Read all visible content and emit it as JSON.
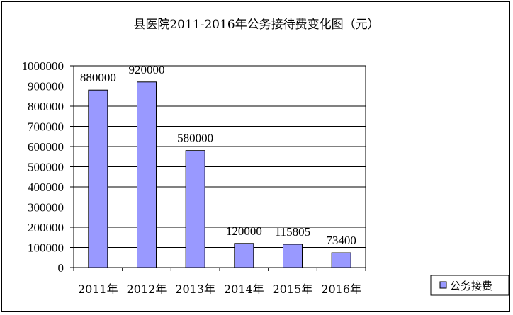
{
  "chart_data": {
    "type": "bar",
    "title": "县医院2011-2016年公务接待费变化图（元）",
    "categories": [
      "2011年",
      "2012年",
      "2013年",
      "2014年",
      "2015年",
      "2016年"
    ],
    "series": [
      {
        "name": "公务接费",
        "values": [
          880000,
          920000,
          580000,
          120000,
          115805,
          73400
        ]
      }
    ],
    "data_labels": [
      "880000",
      "920000",
      "580000",
      "120000",
      "115805",
      "73400"
    ],
    "y_ticks": [
      "0",
      "100000",
      "200000",
      "300000",
      "400000",
      "500000",
      "600000",
      "700000",
      "800000",
      "900000",
      "1000000"
    ],
    "ylim": [
      0,
      1000000
    ],
    "grid": true,
    "legend_position": "bottom-right",
    "bar_color": "#9999ff"
  }
}
